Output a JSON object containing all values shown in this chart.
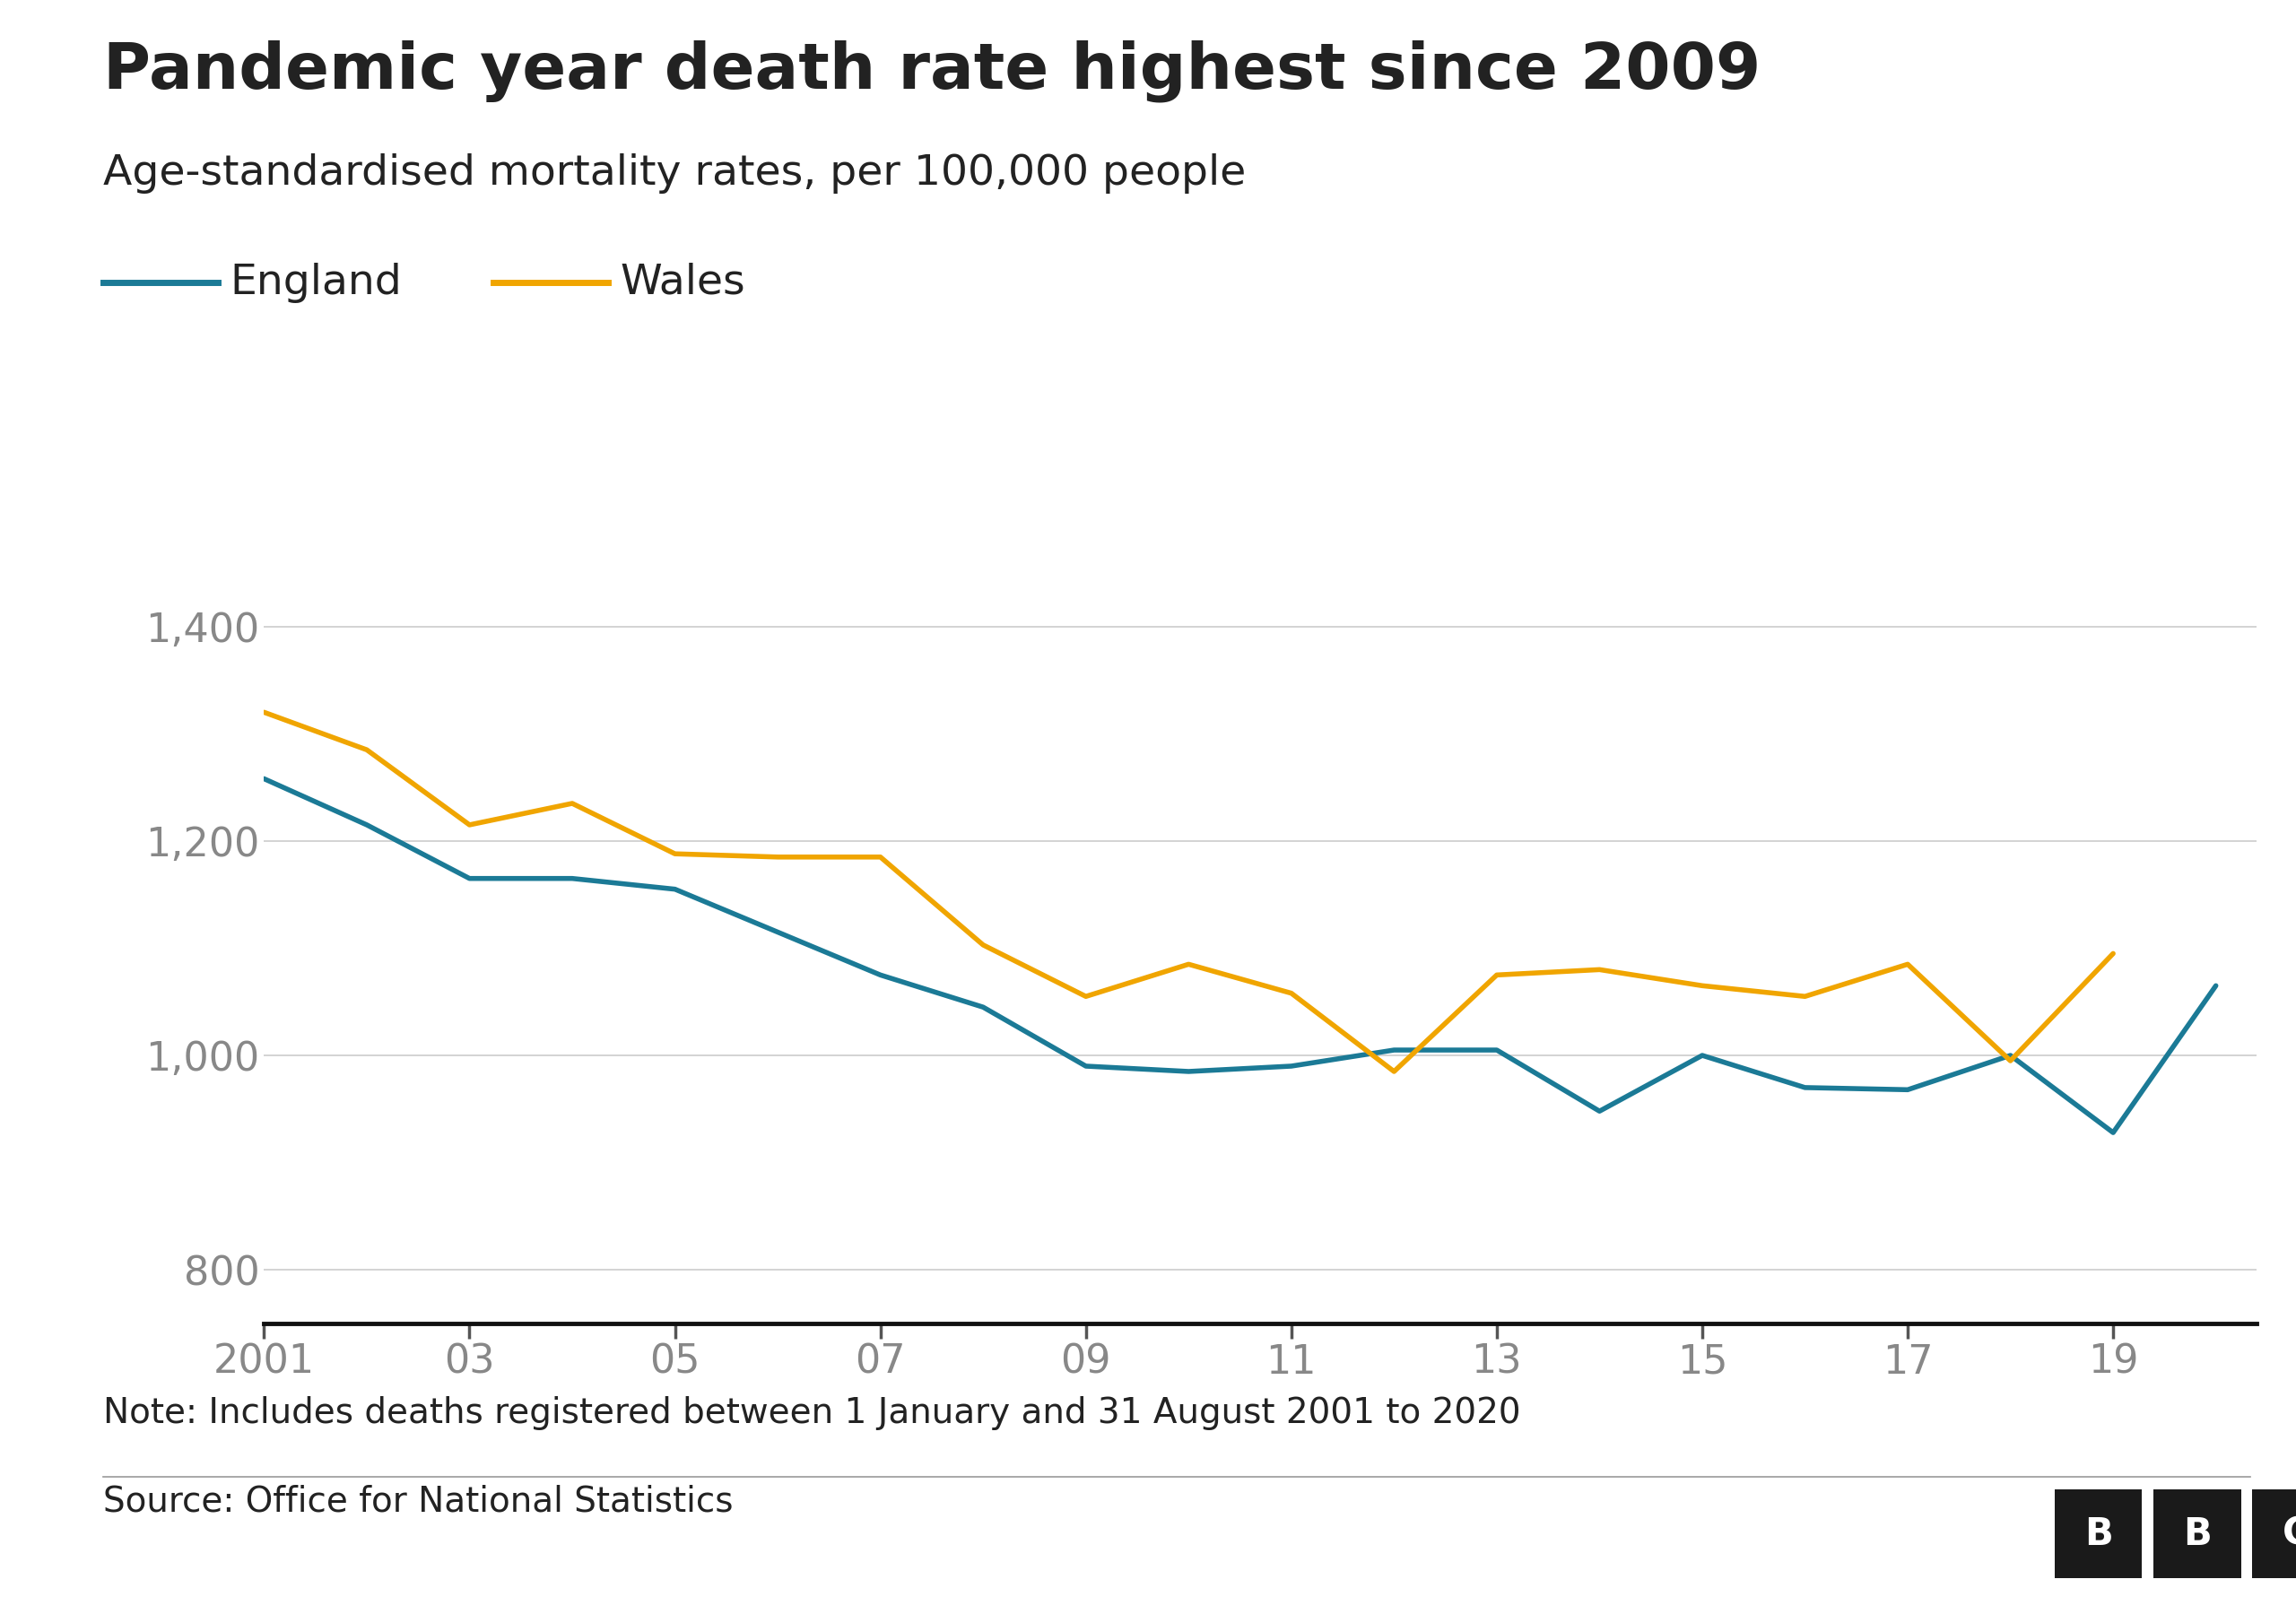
{
  "title": "Pandemic year death rate highest since 2009",
  "subtitle": "Age-standardised mortality rates, per 100,000 people",
  "england_color": "#1b7a96",
  "wales_color": "#f0a500",
  "background_color": "#ffffff",
  "years_england": [
    2001,
    2002,
    2003,
    2004,
    2005,
    2006,
    2007,
    2008,
    2009,
    2010,
    2011,
    2012,
    2013,
    2014,
    2015,
    2016,
    2017,
    2018,
    2019,
    2020
  ],
  "years_wales": [
    2001,
    2002,
    2003,
    2004,
    2005,
    2006,
    2007,
    2008,
    2009,
    2010,
    2011,
    2012,
    2013,
    2014,
    2015,
    2016,
    2017,
    2018,
    2019
  ],
  "england": [
    1258,
    1215,
    1165,
    1165,
    1155,
    1115,
    1075,
    1045,
    990,
    985,
    990,
    1005,
    1005,
    948,
    1000,
    970,
    968,
    1000,
    928,
    1065
  ],
  "wales": [
    1320,
    1285,
    1215,
    1235,
    1188,
    1185,
    1185,
    1103,
    1055,
    1085,
    1058,
    985,
    1075,
    1080,
    1065,
    1055,
    1085,
    995,
    1095
  ],
  "ylim": [
    750,
    1480
  ],
  "yticks": [
    800,
    1000,
    1200,
    1400
  ],
  "ytick_labels": [
    "800",
    "1,000",
    "1,200",
    "1,400"
  ],
  "xtick_labels": [
    "2001",
    "03",
    "05",
    "07",
    "09",
    "11",
    "13",
    "15",
    "17",
    "19"
  ],
  "xticks": [
    2001,
    2003,
    2005,
    2007,
    2009,
    2011,
    2013,
    2015,
    2017,
    2019
  ],
  "note": "Note: Includes deaths registered between 1 January and 31 August 2001 to 2020",
  "source": "Source: Office for National Statistics",
  "title_fontsize": 52,
  "subtitle_fontsize": 34,
  "legend_fontsize": 34,
  "tick_fontsize": 32,
  "note_fontsize": 28,
  "source_fontsize": 28,
  "line_width": 4.0,
  "grid_color": "#cccccc",
  "text_color": "#222222",
  "label_color": "#888888",
  "spine_color": "#111111"
}
